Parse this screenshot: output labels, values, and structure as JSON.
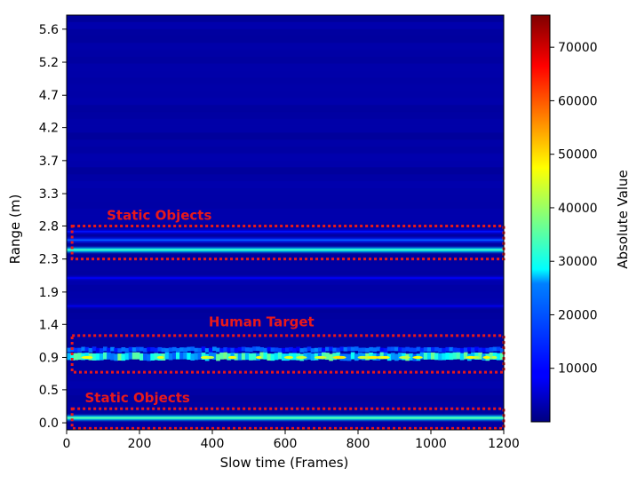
{
  "chart_data": {
    "type": "heatmap",
    "xlabel": "Slow time (Frames)",
    "ylabel": "Range (m)",
    "xlim": [
      0,
      1200
    ],
    "ylim": [
      -0.1,
      5.8
    ],
    "x_ticks": [
      "0",
      "200",
      "400",
      "600",
      "800",
      "1000",
      "1200"
    ],
    "x_tick_values": [
      0,
      200,
      400,
      600,
      800,
      1000,
      1200
    ],
    "y_ticks": [
      "0.0",
      "0.5",
      "0.9",
      "1.4",
      "1.9",
      "2.3",
      "2.8",
      "3.3",
      "3.7",
      "4.2",
      "4.7",
      "5.2",
      "5.6"
    ],
    "y_tick_values": [
      0.0,
      0.47,
      0.93,
      1.4,
      1.86,
      2.33,
      2.8,
      3.26,
      3.73,
      4.2,
      4.66,
      5.13,
      5.6
    ],
    "colormap": "jet",
    "colorbar": {
      "label": "Absolute Value",
      "range": [
        0,
        76000
      ],
      "ticks": [
        "10000",
        "20000",
        "30000",
        "40000",
        "50000",
        "60000",
        "70000"
      ],
      "tick_values": [
        10000,
        20000,
        30000,
        40000,
        50000,
        60000,
        70000
      ]
    },
    "bands": [
      {
        "range_m": 0.07,
        "width_m": 0.06,
        "value": 28000
      },
      {
        "range_m": 0.93,
        "width_m": 0.1,
        "value": 30000,
        "varying": true
      },
      {
        "range_m": 1.03,
        "width_m": 0.06,
        "value": 16000,
        "varying": true
      },
      {
        "range_m": 2.46,
        "width_m": 0.06,
        "value": 26000
      },
      {
        "range_m": 2.6,
        "width_m": 0.05,
        "value": 13000
      },
      {
        "range_m": 2.72,
        "width_m": 0.04,
        "value": 9000
      },
      {
        "range_m": 2.06,
        "width_m": 0.04,
        "value": 7500
      },
      {
        "range_m": 1.66,
        "width_m": 0.04,
        "value": 6500
      }
    ],
    "annotations": [
      {
        "label": "Static Objects",
        "x_range": [
          15,
          1200
        ],
        "y_range": [
          2.33,
          2.8
        ],
        "label_x": 110,
        "label_y": 2.89,
        "color": "#e8191b"
      },
      {
        "label": "Human Target",
        "x_range": [
          15,
          1200
        ],
        "y_range": [
          0.72,
          1.24
        ],
        "label_x": 390,
        "label_y": 1.37,
        "color": "#e8191b"
      },
      {
        "label": "Static Objects",
        "x_range": [
          15,
          1200
        ],
        "y_range": [
          -0.08,
          0.2
        ],
        "label_x": 50,
        "label_y": 0.29,
        "color": "#e8191b"
      }
    ]
  }
}
